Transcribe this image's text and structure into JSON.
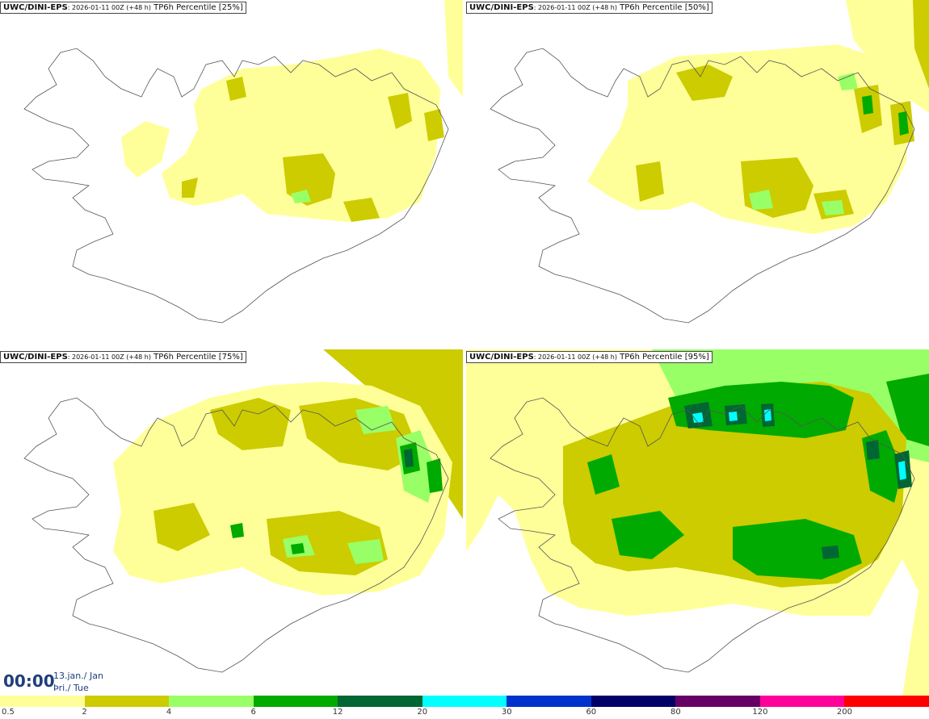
{
  "panels": [
    {
      "model": "UWC/DINI-EPS",
      "run": ": 2026-01-11 00Z (+48 h)",
      "field": " TP6h Percentile [25%]"
    },
    {
      "model": "UWC/DINI-EPS",
      "run": ": 2026-01-11 00Z (+48 h)",
      "field": " TP6h Percentile [50%]"
    },
    {
      "model": "UWC/DINI-EPS",
      "run": ": 2026-01-11 00Z (+48 h)",
      "field": " TP6h Percentile [75%]"
    },
    {
      "model": "UWC/DINI-EPS",
      "run": ": 2026-01-11 00Z (+48 h)",
      "field": " TP6h Percentile [95%]"
    }
  ],
  "valid_time": {
    "time": "00:00",
    "date": "13.jan./ Jan",
    "weekday": "Þri./ Tue"
  },
  "legend": {
    "colors": [
      "#ffff99",
      "#cccc00",
      "#99ff66",
      "#00aa00",
      "#006633",
      "#00ffff",
      "#0033cc",
      "#000066",
      "#660066",
      "#ff0099",
      "#ff0000"
    ],
    "ticks": [
      "0.5",
      "2",
      "4",
      "6",
      "12",
      "20",
      "30",
      "60",
      "80",
      "120",
      "200"
    ]
  },
  "colors": {
    "light_yellow": "#ffff99",
    "olive": "#cccc00",
    "light_green": "#99ff66",
    "green": "#00aa00",
    "dark_green": "#006633",
    "cyan": "#00ffff"
  }
}
